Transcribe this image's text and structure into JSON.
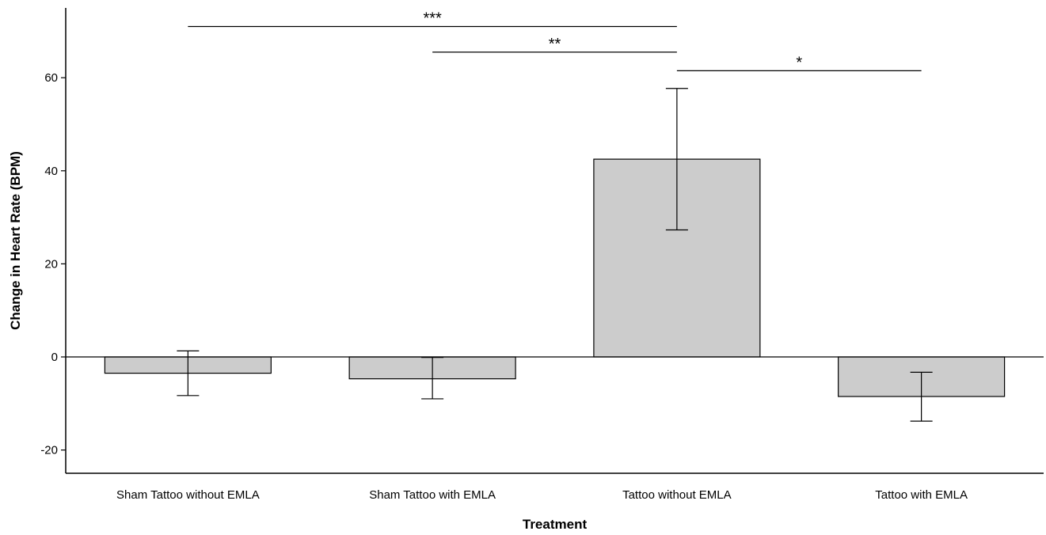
{
  "chart_data": {
    "type": "bar",
    "xlabel": "Treatment",
    "ylabel": "Change in Heart Rate (BPM)",
    "categories": [
      "Sham Tattoo without EMLA",
      "Sham Tattoo with EMLA",
      "Tattoo without EMLA",
      "Tattoo with EMLA"
    ],
    "values": [
      -3.5,
      -4.7,
      42.5,
      -8.5
    ],
    "error_low": [
      -8.3,
      -9.0,
      27.3,
      -13.8
    ],
    "error_high": [
      1.3,
      -0.1,
      57.7,
      -3.3
    ],
    "ylim": [
      -25,
      75
    ],
    "yticks": [
      -20,
      0,
      20,
      40,
      60
    ],
    "bar_color": "#cccccc",
    "grid": false,
    "significance": [
      {
        "label": "***",
        "from": 0,
        "to": 2,
        "level": 71
      },
      {
        "label": "**",
        "from": 1,
        "to": 2,
        "level": 65.5
      },
      {
        "label": "*",
        "from": 2,
        "to": 3,
        "level": 61.5
      }
    ]
  }
}
